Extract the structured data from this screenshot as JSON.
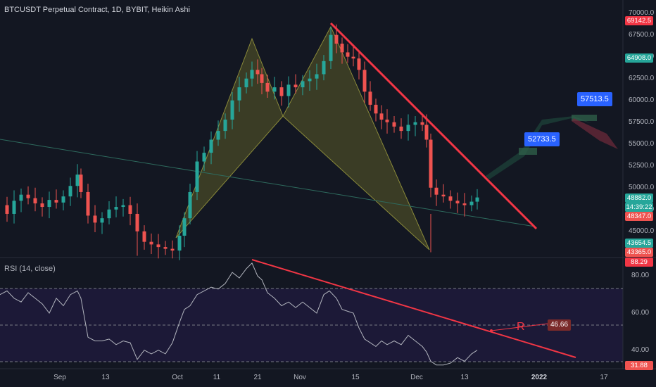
{
  "header": {
    "symbol_title": "BTCUSDT Perpetual Contract, 1D, BYBIT, Heikin Ashi",
    "rsi_title": "RSI (14, close)"
  },
  "price_axis": {
    "ticks": [
      "70000.0",
      "67500.0",
      "65000.0",
      "62500.0",
      "60000.0",
      "57500.0",
      "55000.0",
      "52500.0",
      "50000.0",
      "47500.0",
      "45000.0"
    ],
    "tags": [
      {
        "label": "69142.5",
        "kind": "high"
      },
      {
        "label": "64908.0",
        "kind": "green"
      },
      {
        "label": "48882.0",
        "kind": "last"
      },
      {
        "label": "14:39:22",
        "kind": "countdown"
      },
      {
        "label": "48347.0",
        "kind": "red"
      },
      {
        "label": "43654.5",
        "kind": "green"
      },
      {
        "label": "43365.0",
        "kind": "low"
      }
    ]
  },
  "rsi_axis": {
    "ticks": [
      "80.00",
      "60.00",
      "40.00"
    ],
    "tags": [
      {
        "label": "88.29",
        "kind": "high"
      },
      {
        "label": "31.88",
        "kind": "low"
      }
    ]
  },
  "time_axis": {
    "ticks": [
      "Sep",
      "13",
      "Oct",
      "11",
      "21",
      "Nov",
      "15",
      "Dec",
      "13",
      "2022",
      "17"
    ]
  },
  "annotations": {
    "callout_1": "52733.5",
    "callout_2": "57513.5",
    "r_letter": "R",
    "r_value": "46.66"
  },
  "colors": {
    "background": "#131722",
    "up": "#26a69a",
    "down": "#ef5350",
    "trendline": "#f23645",
    "callout": "#2962ff",
    "pattern_fill": "#6b6b2a"
  },
  "chart_data": [
    {
      "type": "candlestick",
      "title": "BTCUSDT Perpetual Contract, 1D, BYBIT, Heikin Ashi",
      "x_ticks": [
        "Sep",
        "13",
        "Oct",
        "11",
        "21",
        "Nov",
        "15",
        "Dec",
        "13",
        "2022",
        "17"
      ],
      "y_ticks": [
        70000,
        67500,
        65000,
        62500,
        60000,
        57500,
        55000,
        52500,
        50000,
        47500,
        45000
      ],
      "ylim": [
        42000,
        71500
      ],
      "last_price": 48882.0,
      "marked_prices": [
        69142.5,
        64908.0,
        48882.0,
        48347.0,
        43654.5,
        43365.0
      ],
      "projection_targets": [
        52733.5,
        57513.5
      ]
    },
    {
      "type": "line",
      "title": "RSI (14, close)",
      "y_ticks": [
        80,
        60,
        40
      ],
      "ylim": [
        30,
        90
      ],
      "bands": [
        70,
        50,
        30
      ],
      "marked_values": [
        88.29,
        31.88,
        46.66
      ]
    }
  ]
}
